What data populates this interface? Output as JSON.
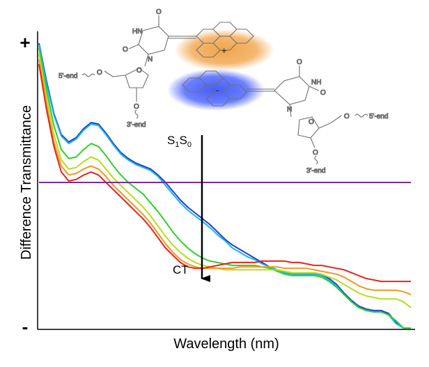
{
  "chart_data": {
    "type": "line",
    "title": "",
    "xlabel": "Wavelength (nm)",
    "ylabel": "Difference Transmittance",
    "y_tick_labels": {
      "top": "+",
      "bottom": "-"
    },
    "xlim": [
      0,
      100
    ],
    "ylim": [
      -1,
      1
    ],
    "grid": false,
    "x": [
      0,
      2,
      4,
      6,
      8,
      10,
      12,
      14,
      16,
      18,
      20,
      22,
      24,
      26,
      28,
      30,
      32,
      34,
      36,
      38,
      40,
      42,
      44,
      46,
      48,
      50,
      52,
      54,
      56,
      58,
      60,
      62,
      64,
      66,
      68,
      70,
      72,
      74,
      76,
      78,
      80,
      82,
      84,
      86,
      88,
      90,
      92,
      94,
      96,
      98,
      100
    ],
    "series": [
      {
        "name": "blue",
        "color": "#1f3fd6",
        "values": [
          0.93,
          0.68,
          0.46,
          0.32,
          0.27,
          0.3,
          0.36,
          0.4,
          0.39,
          0.33,
          0.26,
          0.2,
          0.16,
          0.13,
          0.11,
          0.09,
          0.05,
          0.0,
          -0.06,
          -0.12,
          -0.17,
          -0.21,
          -0.25,
          -0.29,
          -0.34,
          -0.39,
          -0.43,
          -0.46,
          -0.49,
          -0.52,
          -0.55,
          -0.58,
          -0.6,
          -0.62,
          -0.63,
          -0.63,
          -0.63,
          -0.63,
          -0.63,
          -0.66,
          -0.7,
          -0.76,
          -0.81,
          -0.85,
          -0.87,
          -0.88,
          -0.88,
          -0.9,
          -0.96,
          -1.03,
          -1.08
        ]
      },
      {
        "name": "cyan",
        "color": "#19b4e6",
        "values": [
          0.92,
          0.66,
          0.45,
          0.31,
          0.26,
          0.29,
          0.35,
          0.39,
          0.38,
          0.32,
          0.25,
          0.19,
          0.15,
          0.12,
          0.1,
          0.08,
          0.04,
          -0.02,
          -0.08,
          -0.14,
          -0.19,
          -0.23,
          -0.27,
          -0.31,
          -0.36,
          -0.4,
          -0.45,
          -0.48,
          -0.51,
          -0.53,
          -0.56,
          -0.58,
          -0.6,
          -0.62,
          -0.63,
          -0.63,
          -0.63,
          -0.63,
          -0.64,
          -0.67,
          -0.71,
          -0.77,
          -0.82,
          -0.86,
          -0.88,
          -0.89,
          -0.89,
          -0.91,
          -0.97,
          -1.04,
          -1.09
        ]
      },
      {
        "name": "green",
        "color": "#2ed12e",
        "values": [
          0.9,
          0.62,
          0.38,
          0.22,
          0.16,
          0.17,
          0.22,
          0.26,
          0.24,
          0.18,
          0.11,
          0.05,
          0.0,
          -0.04,
          -0.08,
          -0.14,
          -0.2,
          -0.27,
          -0.34,
          -0.4,
          -0.45,
          -0.49,
          -0.52,
          -0.54,
          -0.55,
          -0.56,
          -0.57,
          -0.57,
          -0.57,
          -0.57,
          -0.58,
          -0.59,
          -0.61,
          -0.63,
          -0.64,
          -0.64,
          -0.64,
          -0.64,
          -0.65,
          -0.68,
          -0.72,
          -0.77,
          -0.82,
          -0.86,
          -0.88,
          -0.89,
          -0.89,
          -0.91,
          -0.95,
          -1.01,
          -1.06
        ]
      },
      {
        "name": "yellow-green",
        "color": "#b9dc1a",
        "values": [
          0.86,
          0.57,
          0.32,
          0.15,
          0.09,
          0.1,
          0.14,
          0.17,
          0.15,
          0.09,
          0.03,
          -0.02,
          -0.07,
          -0.12,
          -0.17,
          -0.23,
          -0.3,
          -0.37,
          -0.43,
          -0.48,
          -0.52,
          -0.55,
          -0.57,
          -0.58,
          -0.59,
          -0.6,
          -0.6,
          -0.6,
          -0.6,
          -0.6,
          -0.6,
          -0.6,
          -0.6,
          -0.61,
          -0.62,
          -0.62,
          -0.62,
          -0.62,
          -0.63,
          -0.65,
          -0.67,
          -0.7,
          -0.73,
          -0.76,
          -0.78,
          -0.79,
          -0.8,
          -0.8,
          -0.8,
          -0.82,
          -0.86
        ]
      },
      {
        "name": "orange",
        "color": "#f5961e",
        "values": [
          0.82,
          0.52,
          0.27,
          0.11,
          0.05,
          0.06,
          0.09,
          0.11,
          0.09,
          0.04,
          -0.02,
          -0.07,
          -0.12,
          -0.17,
          -0.22,
          -0.28,
          -0.35,
          -0.42,
          -0.48,
          -0.53,
          -0.56,
          -0.58,
          -0.59,
          -0.59,
          -0.59,
          -0.59,
          -0.59,
          -0.58,
          -0.58,
          -0.58,
          -0.58,
          -0.58,
          -0.58,
          -0.59,
          -0.59,
          -0.59,
          -0.59,
          -0.6,
          -0.61,
          -0.62,
          -0.63,
          -0.65,
          -0.68,
          -0.71,
          -0.73,
          -0.74,
          -0.74,
          -0.74,
          -0.74,
          -0.75,
          -0.77
        ]
      },
      {
        "name": "red",
        "color": "#e8231a",
        "values": [
          0.79,
          0.49,
          0.24,
          0.07,
          0.01,
          0.02,
          0.05,
          0.07,
          0.05,
          0.0,
          -0.05,
          -0.1,
          -0.15,
          -0.2,
          -0.25,
          -0.31,
          -0.38,
          -0.45,
          -0.5,
          -0.55,
          -0.58,
          -0.59,
          -0.59,
          -0.58,
          -0.57,
          -0.56,
          -0.55,
          -0.55,
          -0.55,
          -0.55,
          -0.54,
          -0.54,
          -0.54,
          -0.54,
          -0.55,
          -0.55,
          -0.56,
          -0.57,
          -0.57,
          -0.58,
          -0.59,
          -0.6,
          -0.62,
          -0.64,
          -0.66,
          -0.67,
          -0.68,
          -0.68,
          -0.68,
          -0.68,
          -0.68
        ]
      },
      {
        "name": "purple",
        "color": "#7a2a9c",
        "values": [
          0,
          0,
          0,
          0,
          0,
          0,
          0,
          0,
          0,
          0,
          0,
          0,
          0,
          0,
          0,
          0,
          0,
          0,
          0,
          0,
          0,
          0,
          0,
          0,
          0,
          0,
          0,
          0,
          0,
          0,
          0,
          0,
          0,
          0,
          0,
          0,
          0,
          0,
          0,
          0,
          0,
          0,
          0,
          0,
          0,
          0,
          0,
          0,
          0,
          0,
          0
        ]
      }
    ],
    "annotations": {
      "arrow_top_main": "S",
      "arrow_top_sub1": "1",
      "arrow_top_mid": "S",
      "arrow_top_sub2": "0",
      "arrow_bottom": "CT"
    },
    "structure_labels": {
      "hn": "HN",
      "o_top": "O",
      "o_mid": "O",
      "n_left": "N",
      "o_ring_left": "O",
      "o_link_left": "O",
      "five_end_left": "5'-end",
      "o_sugar_left": "O",
      "three_end_left": "3'-end",
      "plus": "+",
      "minus": "-",
      "o_top_right": "O",
      "nh_right": "NH",
      "o_right": "O",
      "n_right": "N",
      "o_ring_right": "O",
      "o_link_right": "O",
      "five_end_right": "5'-end",
      "o_sugar_right": "O",
      "three_end_right": "3'-end"
    },
    "colors": {
      "cation_glow": "#f0a040",
      "anion_glow": "#4060ff"
    }
  }
}
